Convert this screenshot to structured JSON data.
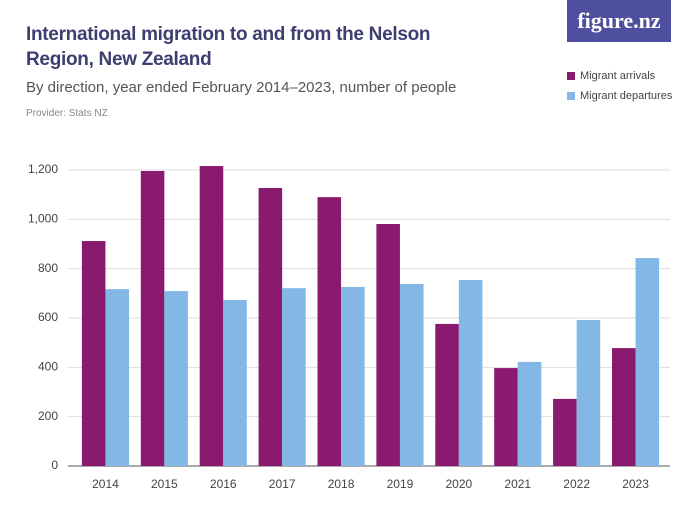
{
  "logo": "figure.nz",
  "chart_data": {
    "type": "bar",
    "title": "International migration to and from the Nelson Region, New Zealand",
    "subtitle": "By direction, year ended February 2014–2023, number of people",
    "provider": "Provider: Stats NZ",
    "categories": [
      "2014",
      "2015",
      "2016",
      "2017",
      "2018",
      "2019",
      "2020",
      "2021",
      "2022",
      "2023"
    ],
    "series": [
      {
        "name": "Migrant arrivals",
        "color": "#8a1a6e",
        "values": [
          912,
          1196,
          1216,
          1127,
          1090,
          981,
          576,
          397,
          272,
          478
        ]
      },
      {
        "name": "Migrant departures",
        "color": "#82b7e6",
        "values": [
          717,
          709,
          673,
          721,
          726,
          738,
          754,
          422,
          592,
          843
        ]
      }
    ],
    "ylim": [
      0,
      1200
    ],
    "yticks": [
      0,
      200,
      400,
      600,
      800,
      {
        "value": 1000,
        "label": "1,000"
      },
      {
        "value": 1200,
        "label": "1,200"
      }
    ],
    "grid": true,
    "legend": "top-right"
  }
}
